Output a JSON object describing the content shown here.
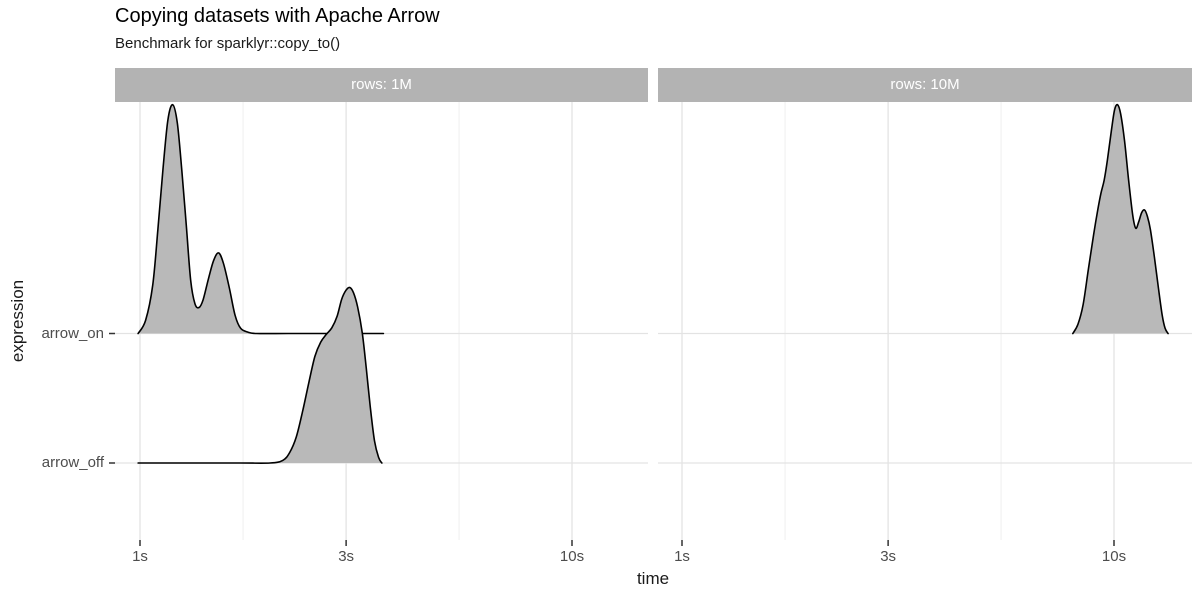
{
  "title": "Copying datasets with Apache Arrow",
  "subtitle": "Benchmark for sparklyr::copy_to()",
  "axes": {
    "x_title": "time",
    "y_title": "expression",
    "x_tick_labels": [
      "1s",
      "3s",
      "10s"
    ],
    "y_tick_labels": [
      "arrow_on",
      "arrow_off"
    ]
  },
  "colors": {
    "background": "#ffffff",
    "strip_bg": "#b3b3b3",
    "strip_text": "#ffffff",
    "ridge_fill": "#b9b9b9",
    "ridge_stroke": "#000000",
    "grid_major": "#e3e3e3",
    "grid_minor": "#efefef",
    "axis_tick": "#333333",
    "tick_label_text": "#4d4d4d",
    "title_text": "#000000"
  },
  "chart_data": {
    "type": "area",
    "subtype": "density-ridgeline",
    "x_scale": "log10",
    "x_unit": "seconds",
    "x_breaks_seconds": [
      1,
      3,
      10
    ],
    "x_tick_labels": [
      "1s",
      "3s",
      "10s"
    ],
    "x_minor_breaks_seconds": [
      1.7321,
      5.4772
    ],
    "x_range_seconds": [
      0.875,
      15.2
    ],
    "y_categories_bottom_up": [
      "arrow_off",
      "arrow_on"
    ],
    "facets": [
      {
        "label": "rows: 1M",
        "ridges": [
          {
            "expression": "arrow_on",
            "peaks_seconds": [
              1.19,
              1.52
            ],
            "baseline_span_seconds": [
              0.99,
              3.66
            ],
            "points": [
              [
                0.99,
                0
              ],
              [
                1.03,
                0.1
              ],
              [
                1.07,
                0.37
              ],
              [
                1.1,
                0.8
              ],
              [
                1.13,
                1.26
              ],
              [
                1.16,
                1.64
              ],
              [
                1.19,
                1.76
              ],
              [
                1.22,
                1.62
              ],
              [
                1.25,
                1.25
              ],
              [
                1.28,
                0.83
              ],
              [
                1.31,
                0.41
              ],
              [
                1.34,
                0.23
              ],
              [
                1.37,
                0.2
              ],
              [
                1.4,
                0.26
              ],
              [
                1.44,
                0.42
              ],
              [
                1.48,
                0.56
              ],
              [
                1.52,
                0.62
              ],
              [
                1.56,
                0.54
              ],
              [
                1.61,
                0.35
              ],
              [
                1.66,
                0.14
              ],
              [
                1.71,
                0.04
              ],
              [
                1.78,
                0.01
              ],
              [
                1.86,
                0
              ],
              [
                2.2,
                0
              ],
              [
                2.7,
                0
              ],
              [
                3.2,
                0
              ],
              [
                3.66,
                0
              ]
            ]
          },
          {
            "expression": "arrow_off",
            "peaks_seconds": [
              3.06
            ],
            "baseline_span_seconds": [
              0.99,
              3.63
            ],
            "points": [
              [
                0.99,
                0
              ],
              [
                1.3,
                0
              ],
              [
                1.7,
                0
              ],
              [
                2.0,
                0
              ],
              [
                2.14,
                0.02
              ],
              [
                2.22,
                0.08
              ],
              [
                2.3,
                0.2
              ],
              [
                2.38,
                0.4
              ],
              [
                2.46,
                0.62
              ],
              [
                2.54,
                0.82
              ],
              [
                2.62,
                0.93
              ],
              [
                2.7,
                0.99
              ],
              [
                2.78,
                1.04
              ],
              [
                2.86,
                1.13
              ],
              [
                2.93,
                1.26
              ],
              [
                3.0,
                1.33
              ],
              [
                3.06,
                1.35
              ],
              [
                3.12,
                1.31
              ],
              [
                3.19,
                1.2
              ],
              [
                3.27,
                1.0
              ],
              [
                3.34,
                0.73
              ],
              [
                3.41,
                0.44
              ],
              [
                3.49,
                0.17
              ],
              [
                3.57,
                0.04
              ],
              [
                3.63,
                0
              ]
            ]
          }
        ]
      },
      {
        "label": "rows: 10M",
        "ridges": [
          {
            "expression": "arrow_on",
            "peaks_seconds": [
              10.2,
              11.8
            ],
            "baseline_span_seconds": [
              8.03,
              13.34
            ],
            "points": [
              [
                8.03,
                0
              ],
              [
                8.25,
                0.07
              ],
              [
                8.48,
                0.22
              ],
              [
                8.72,
                0.49
              ],
              [
                8.97,
                0.76
              ],
              [
                9.17,
                0.95
              ],
              [
                9.33,
                1.08
              ],
              [
                9.49,
                1.18
              ],
              [
                9.65,
                1.33
              ],
              [
                9.87,
                1.57
              ],
              [
                10.03,
                1.72
              ],
              [
                10.19,
                1.76
              ],
              [
                10.36,
                1.69
              ],
              [
                10.58,
                1.48
              ],
              [
                10.81,
                1.18
              ],
              [
                11.05,
                0.91
              ],
              [
                11.23,
                0.81
              ],
              [
                11.41,
                0.86
              ],
              [
                11.59,
                0.93
              ],
              [
                11.77,
                0.95
              ],
              [
                11.95,
                0.9
              ],
              [
                12.14,
                0.8
              ],
              [
                12.4,
                0.59
              ],
              [
                12.66,
                0.36
              ],
              [
                12.93,
                0.14
              ],
              [
                13.13,
                0.04
              ],
              [
                13.34,
                0
              ]
            ]
          }
        ]
      }
    ]
  }
}
